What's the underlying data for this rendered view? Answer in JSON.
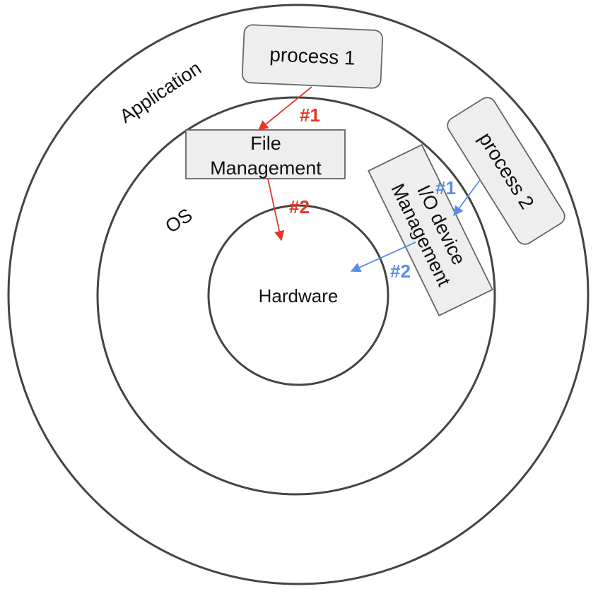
{
  "layers": {
    "application": "Application",
    "os": "OS",
    "hardware": "Hardware"
  },
  "processes": {
    "process_1": "process 1",
    "process_2": "process 2"
  },
  "modules": {
    "file_management_line1": "File",
    "file_management_line2": "Management",
    "io_device_line1": "I/O device",
    "io_device_line2": "Management"
  },
  "flows": {
    "red_step_1": "#1",
    "red_step_2": "#2",
    "blue_step_1": "#1",
    "blue_step_2": "#2"
  },
  "colors": {
    "red_flow": "#e53527",
    "blue_flow": "#5b8ee6",
    "box_fill": "#eeeeee",
    "ring_stroke": "#444444"
  }
}
